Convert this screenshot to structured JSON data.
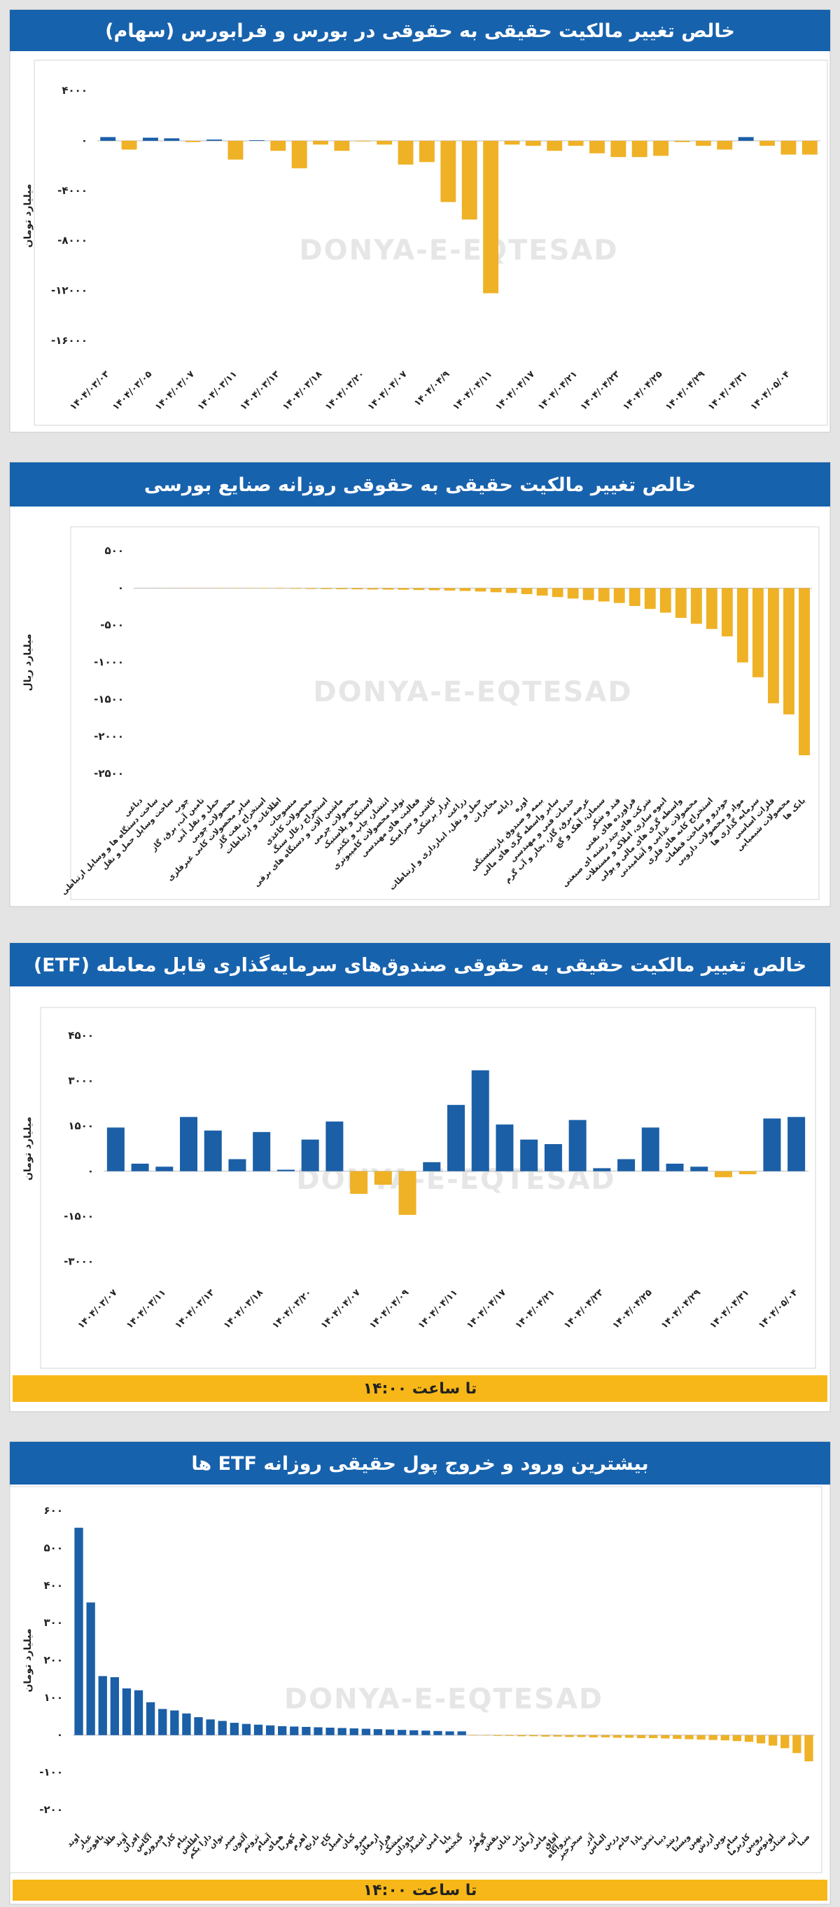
{
  "chart_data": [
    {
      "type": "bar",
      "title": "خالص تغییر مالکیت حقیقی به حقوقی در بورس و فرابورس (سهام)",
      "y_label": "میلیارد تومان",
      "watermark": "DONYA-E-EQTESAD",
      "positive_color": "#1b5fa7",
      "negative_color": "#efb125",
      "grid": false,
      "categories": [
        "۱۴۰۴/۰۳/۰۳",
        null,
        "۱۴۰۴/۰۳/۰۵",
        null,
        "۱۴۰۴/۰۳/۰۷",
        null,
        "۱۴۰۴/۰۳/۱۱",
        null,
        "۱۴۰۴/۰۳/۱۳",
        null,
        "۱۴۰۴/۰۳/۱۸",
        null,
        "۱۴۰۴/۰۳/۲۰",
        null,
        "۱۴۰۴/۰۴/۰۷",
        null,
        "۱۴۰۴/۰۴/۹",
        null,
        "۱۴۰۴/۰۴/۱۱",
        null,
        "۱۴۰۴/۰۴/۱۷",
        null,
        "۱۴۰۴/۰۴/۲۱",
        null,
        "۱۴۰۴/۰۴/۲۳",
        null,
        "۱۴۰۴/۰۴/۲۵",
        null,
        "۱۴۰۴/۰۴/۲۹",
        null,
        "۱۴۰۴/۰۴/۳۱",
        null,
        "۱۴۰۴/۰۵/۰۴",
        null
      ],
      "values": [
        300,
        -700,
        250,
        200,
        -100,
        100,
        -1500,
        50,
        -800,
        -2200,
        -300,
        -800,
        -50,
        -300,
        -1900,
        -1700,
        -4900,
        -6300,
        -12200,
        -300,
        -400,
        -800,
        -400,
        -1000,
        -1300,
        -1300,
        -1200,
        -100,
        -400,
        -700,
        300,
        -400,
        -1100,
        -1100
      ],
      "ylim": [
        -18000,
        6000
      ],
      "yticks": [
        {
          "value": 4000,
          "label": "۴۰۰۰"
        },
        {
          "value": 0,
          "label": "۰"
        },
        {
          "value": -4000,
          "label": "-۴۰۰۰"
        },
        {
          "value": -8000,
          "label": "-۸۰۰۰"
        },
        {
          "value": -12000,
          "label": "-۱۲۰۰۰"
        },
        {
          "value": -16000,
          "label": "-۱۶۰۰۰"
        }
      ]
    },
    {
      "type": "bar",
      "title": "خالص تغییر مالکیت حقیقی به حقوقی روزانه صنایع بورسی",
      "y_label": "میلیارد ریال",
      "watermark": "DONYA-E-EQTESAD",
      "positive_color": "#1b5fa7",
      "negative_color": "#efb125",
      "grid": false,
      "categories": [
        "دباغی",
        "ساخت دستگاه ها و وسایل ارتباطی",
        "ساخت وسایل حمل و نقل",
        "چوب",
        "تامین آب، برق، گاز",
        "حمل و نقل آبی",
        "محصولات چوبی",
        "سایر محصولات کانی غیرفلزی",
        "استخراج نفت گاز",
        "اطلاعات و ارتباطات",
        "منسوجات",
        "محصولات کاغذی",
        "استخراج زغال سنگ",
        "ماشین آلات و دستگاه های برقی",
        "محصولات چرمی",
        "لاستیک و پلاستیک",
        "انتشار، چاپ و تکثیر",
        "تولید محصولات کامپیوتری",
        "فعالیت های مهندسی",
        "کاشی و سرامیک",
        "ابزار پزشکی",
        "زراعت",
        "حمل و نقل، انبارداری و ارتباطات",
        "مخابرات",
        "رایانه",
        "اوره",
        "بیمه و صندوق بازنشستگی",
        "سایر واسطه گری های مالی",
        "خدمات فنی و مهندسی",
        "عرضه برق، گاز، بخار و آب گرم",
        "سیمان، آهک و گچ",
        "قند و شکر",
        "فراورده های نفتی",
        "شرکت های چند رشته ای صنعتی",
        "انبوه سازی، املاک و مستغلات",
        "واسطه گری های مالی و پولی",
        "محصولات غذایی و آشامیدنی",
        "استخراج کانه های فلزی",
        "خودرو و ساخت قطعات",
        "مواد و محصولات دارویی",
        "سرمایه گذاری ها",
        "فلزات اساسی",
        "محصولات شیمیایی",
        "بانک ها"
      ],
      "values": [
        0,
        -1,
        -1,
        -2,
        -2,
        -3,
        -3,
        -4,
        -5,
        -6,
        -8,
        -10,
        -12,
        -14,
        -16,
        -18,
        -20,
        -22,
        -25,
        -28,
        -32,
        -38,
        -45,
        -55,
        -65,
        -80,
        -100,
        -120,
        -140,
        -160,
        -180,
        -200,
        -240,
        -280,
        -330,
        -400,
        -480,
        -550,
        -650,
        -1000,
        -1200,
        -1550,
        -1700,
        -2250
      ],
      "ylim": [
        -2750,
        750
      ],
      "yticks": [
        {
          "value": 500,
          "label": "۵۰۰"
        },
        {
          "value": 0,
          "label": "۰"
        },
        {
          "value": -500,
          "label": "-۵۰۰"
        },
        {
          "value": -1000,
          "label": "-۱۰۰۰"
        },
        {
          "value": -1500,
          "label": "-۱۵۰۰"
        },
        {
          "value": -2000,
          "label": "-۲۰۰۰"
        },
        {
          "value": -2500,
          "label": "-۲۵۰۰"
        }
      ]
    },
    {
      "type": "bar",
      "title": "خالص تغییر مالکیت حقیقی به حقوقی صندوق‌های سرمایه‌گذاری قابل معامله (ETF)",
      "y_label": "میلیارد تومان",
      "watermark": "DONYA-E-EQTESAD",
      "footer": "تا ساعت ۱۴:۰۰",
      "positive_color": "#1b5fa7",
      "negative_color": "#efb125",
      "grid": false,
      "categories": [
        "۱۴۰۴/۰۳/۰۷",
        null,
        "۱۴۰۴/۰۳/۱۱",
        null,
        "۱۴۰۴/۰۳/۱۳",
        null,
        "۱۴۰۴/۰۳/۱۸",
        null,
        "۱۴۰۴/۰۳/۲۰",
        null,
        "۱۴۰۴/۰۴/۰۷",
        null,
        "۱۴۰۴/۰۴/۰۹",
        null,
        "۱۴۰۴/۰۴/۱۱",
        null,
        "۱۴۰۴/۰۴/۱۷",
        null,
        "۱۴۰۴/۰۴/۲۱",
        null,
        "۱۴۰۴/۰۴/۲۳",
        null,
        "۱۴۰۴/۰۴/۲۵",
        null,
        "۱۴۰۴/۰۴/۲۹",
        null,
        "۱۴۰۴/۰۴/۳۱",
        null,
        "۱۴۰۴/۰۵/۰۴"
      ],
      "values": [
        1450,
        250,
        150,
        1800,
        1350,
        400,
        1300,
        50,
        1050,
        1650,
        -750,
        -450,
        -1450,
        300,
        2200,
        3350,
        1550,
        1050,
        900,
        1700,
        100,
        400,
        1450,
        250,
        150,
        -200,
        -100,
        1750,
        1800
      ],
      "ylim": [
        -3750,
        5250
      ],
      "yticks": [
        {
          "value": 4500,
          "label": "۴۵۰۰"
        },
        {
          "value": 3000,
          "label": "۳۰۰۰"
        },
        {
          "value": 1500,
          "label": "۱۵۰۰"
        },
        {
          "value": 0,
          "label": "۰"
        },
        {
          "value": -1500,
          "label": "-۱۵۰۰"
        },
        {
          "value": -3000,
          "label": "-۳۰۰۰"
        }
      ]
    },
    {
      "type": "bar",
      "title": "بیشترین ورود و خروج پول حقیقی روزانه ETF ها",
      "y_label": "میلیارد تومان",
      "watermark": "DONYA-E-EQTESAD",
      "footer": "تا ساعت ۱۴:۰۰",
      "positive_color": "#1b5fa7",
      "negative_color": "#efb125",
      "grid": false,
      "categories": [
        "اوند",
        "عیار",
        "یاقوت",
        "طلا",
        "آوند",
        "افران",
        "آگاس",
        "فیروزه",
        "کارا",
        "تیام",
        "اطلس",
        "دارا یکم",
        "توان",
        "سپر",
        "آلتون",
        "ثروتم",
        "آسام",
        "همای",
        "کهربا",
        "اهرم",
        "نارنج",
        "کاج",
        "اصیل",
        "کیان",
        "سرو",
        "ارمغان",
        "فراز",
        "تمشک",
        "جاودان",
        "اعتماد",
        "امین",
        "پایا",
        "گنجینه",
        "زر",
        "گوهر",
        "نقش",
        "تابان",
        "ناب",
        "آرمان",
        "مانی",
        "آفاق",
        "پتروآگاه",
        "سحرخیز",
        "آذر",
        "الماس",
        "زرین",
        "خاتم",
        "پادا",
        "ثمین",
        "دیبا",
        "رشد",
        "ویستا",
        "بهین",
        "ارزش",
        "نوین",
        "سام",
        "کاریزما",
        "رویین",
        "لوتوس",
        "شتاب",
        "آتیه",
        "صبا"
      ],
      "values": [
        555,
        355,
        158,
        155,
        125,
        120,
        88,
        70,
        66,
        58,
        48,
        42,
        38,
        33,
        30,
        28,
        26,
        24,
        23,
        22,
        21,
        20,
        19,
        18,
        17,
        16,
        15,
        14,
        13,
        12,
        11,
        10,
        10,
        -1,
        -1,
        -2,
        -2,
        -3,
        -3,
        -4,
        -4,
        -5,
        -5,
        -6,
        -6,
        -7,
        -7,
        -8,
        -8,
        -9,
        -10,
        -11,
        -12,
        -13,
        -14,
        -16,
        -18,
        -22,
        -28,
        -35,
        -48,
        -70
      ],
      "ylim": [
        -250,
        650
      ],
      "yticks": [
        {
          "value": 600,
          "label": "۶۰۰"
        },
        {
          "value": 500,
          "label": "۵۰۰"
        },
        {
          "value": 400,
          "label": "۴۰۰"
        },
        {
          "value": 300,
          "label": "۳۰۰"
        },
        {
          "value": 200,
          "label": "۲۰۰"
        },
        {
          "value": 100,
          "label": "۱۰۰"
        },
        {
          "value": 0,
          "label": "۰"
        },
        {
          "value": -100,
          "label": "-۱۰۰"
        },
        {
          "value": -200,
          "label": "-۲۰۰"
        }
      ]
    }
  ]
}
